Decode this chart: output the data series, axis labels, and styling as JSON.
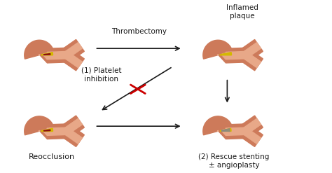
{
  "bg_color": "#ffffff",
  "vessel_color": "#cd7a5a",
  "vessel_lumen_color": "#e8a888",
  "plaque_color": "#d4b800",
  "thrombus_color": "#8b1010",
  "stent_line_color": "#888888",
  "arrow_color": "#1a1a1a",
  "inhibit_color": "#cc0000",
  "text_color": "#1a1a1a",
  "label_thrombectomy": "Thrombectomy",
  "label_platelet": "(1) Platelet\ninhibition",
  "label_reocclusion": "Reocclusion",
  "label_inflamed": "Inflamed\nplaque",
  "label_rescue": "(2) Rescue stenting\n± angioplasty",
  "fig_width": 4.74,
  "fig_height": 2.47,
  "dpi": 100
}
